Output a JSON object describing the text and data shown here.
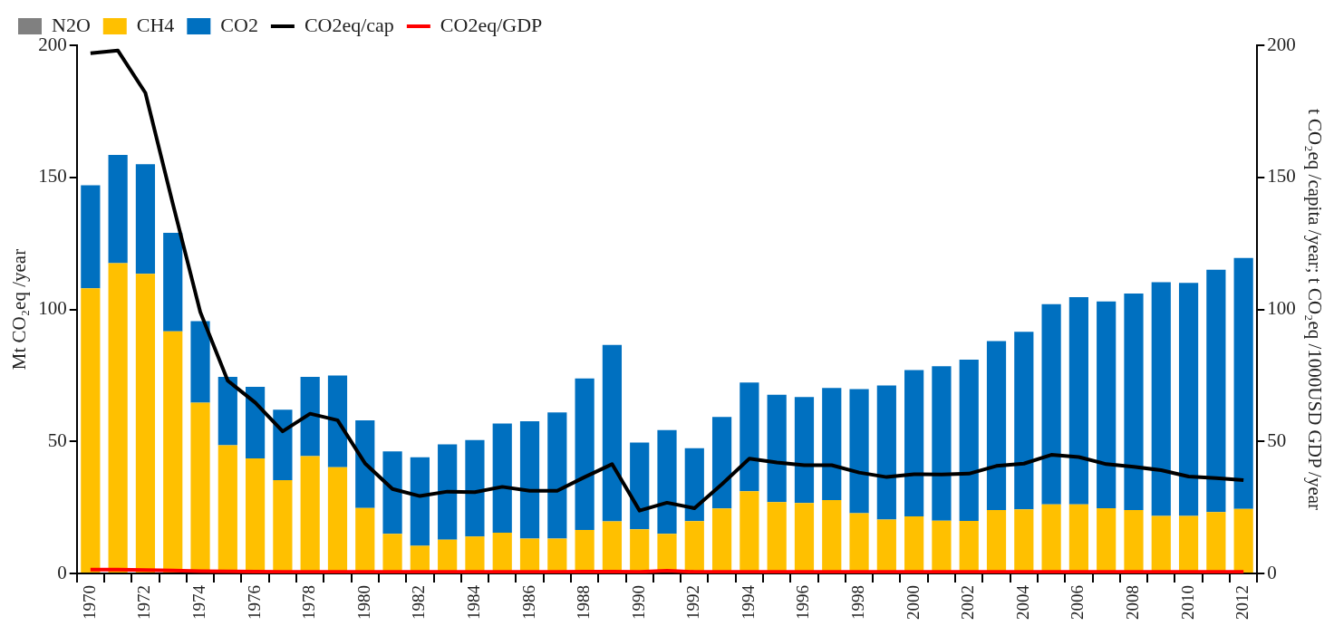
{
  "chart_data": {
    "type": "bar",
    "stacked": true,
    "categories": [
      "1970",
      null,
      "1972",
      null,
      "1974",
      null,
      "1976",
      null,
      "1978",
      null,
      "1980",
      null,
      "1982",
      null,
      "1984",
      null,
      "1986",
      null,
      "1988",
      null,
      "1990",
      null,
      "1992",
      null,
      "1994",
      null,
      "1996",
      null,
      "1998",
      null,
      "2000",
      null,
      "2002",
      null,
      "2004",
      null,
      "2006",
      null,
      "2008",
      null,
      "2010",
      null,
      "2012"
    ],
    "ylabel": "Mt CO₂eq /year",
    "y2label": "t CO₂eq /capita /year; t CO₂eq /1000USD GDP /year",
    "ylim": [
      0,
      200
    ],
    "yticks": [
      0,
      50,
      100,
      150,
      200
    ],
    "y2lim": [
      0,
      200
    ],
    "y2ticks": [
      0,
      50,
      100,
      150,
      200
    ],
    "legend": "top left",
    "grid": false,
    "series": [
      {
        "name": "N2O",
        "color": "#808080",
        "values": [
          0,
          0,
          0,
          0,
          0,
          0,
          0,
          0,
          0,
          0,
          0,
          0,
          0,
          0,
          0,
          0,
          0,
          0,
          0,
          0,
          0,
          0,
          0,
          0,
          0,
          0,
          0,
          0,
          0,
          0,
          0,
          0,
          0,
          0,
          0,
          0,
          0,
          0,
          0,
          0,
          0,
          0,
          0
        ]
      },
      {
        "name": "CH4",
        "color": "#ffc000",
        "values": [
          108,
          117.5,
          113.5,
          91.7,
          64.7,
          48.5,
          43.6,
          35.3,
          44.4,
          40.2,
          24.8,
          15,
          10.5,
          12.8,
          14,
          15.4,
          13.2,
          13.2,
          16.5,
          19.7,
          16.7,
          15,
          19.8,
          24.6,
          31.1,
          27,
          26.7,
          27.8,
          22.8,
          20.4,
          21.6,
          20,
          19.9,
          24,
          24.3,
          26.2,
          26.2,
          24.7,
          24,
          21.8,
          21.8,
          23.2,
          24.4
        ]
      },
      {
        "name": "CO2",
        "color": "#0070c0",
        "values": [
          39,
          41,
          41.5,
          37.3,
          30.8,
          25.9,
          27.1,
          26.7,
          30,
          34.8,
          33.2,
          31.2,
          33.5,
          36.1,
          36.5,
          41.4,
          44.4,
          47.8,
          57.3,
          66.8,
          32.9,
          39.3,
          27.6,
          34.7,
          41.2,
          40.7,
          40.1,
          42.4,
          47,
          50.8,
          55.4,
          58.5,
          61.1,
          64,
          67.2,
          75.8,
          78.4,
          78.3,
          82,
          88.5,
          88.2,
          91.8,
          95.1
        ]
      },
      {
        "name": "CO2eq/cap",
        "type": "line",
        "axis": "y2",
        "color": "#000000",
        "values": [
          197,
          198,
          182,
          140,
          99,
          73,
          64.7,
          53.8,
          60.5,
          58,
          41.7,
          32,
          29.3,
          31,
          30.8,
          32.8,
          31.3,
          31.3,
          36.5,
          41.4,
          23.8,
          26.8,
          24.7,
          33.8,
          43.5,
          42,
          41,
          41,
          38.2,
          36.5,
          37.6,
          37.5,
          37.8,
          40.7,
          41.6,
          44.9,
          44.1,
          41.4,
          40.4,
          39.1,
          36.7,
          36.1,
          35.3
        ]
      },
      {
        "name": "CO2eq/GDP",
        "type": "line",
        "axis": "y2",
        "color": "#ff0000",
        "values": [
          1.5,
          1.5,
          1.3,
          1.1,
          0.9,
          0.8,
          0.7,
          0.6,
          0.6,
          0.6,
          0.6,
          0.6,
          0.6,
          0.6,
          0.6,
          0.6,
          0.6,
          0.6,
          0.7,
          0.7,
          0.6,
          1,
          0.6,
          0.6,
          0.6,
          0.6,
          0.6,
          0.6,
          0.6,
          0.6,
          0.6,
          0.6,
          0.6,
          0.6,
          0.6,
          0.6,
          0.6,
          0.6,
          0.6,
          0.6,
          0.6,
          0.6,
          0.6
        ]
      }
    ]
  }
}
